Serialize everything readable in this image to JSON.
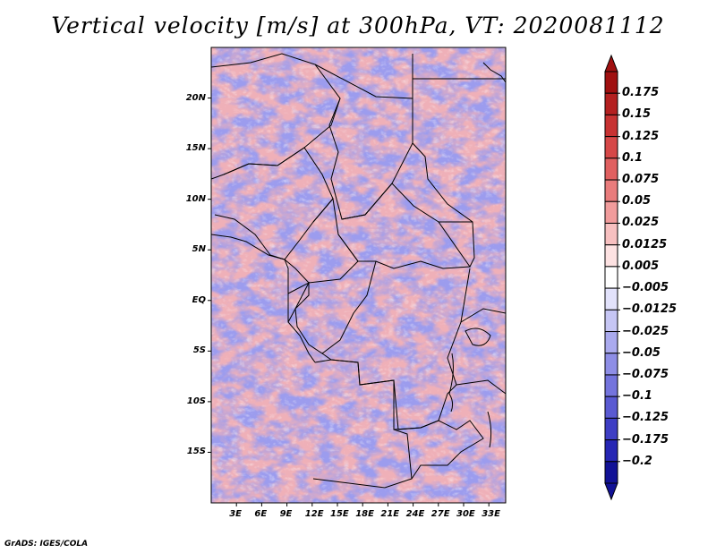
{
  "title": "Vertical velocity [m/s] at 300hPa, VT: 2020081112",
  "footer": "GrADS: IGES/COLA",
  "map": {
    "lon_range": [
      0,
      35
    ],
    "lat_range": [
      -20,
      25
    ],
    "lat_ticks": [
      {
        "lat": 20,
        "label": "20N"
      },
      {
        "lat": 15,
        "label": "15N"
      },
      {
        "lat": 10,
        "label": "10N"
      },
      {
        "lat": 5,
        "label": "5N"
      },
      {
        "lat": 0,
        "label": "EQ"
      },
      {
        "lat": -5,
        "label": "5S"
      },
      {
        "lat": -10,
        "label": "10S"
      },
      {
        "lat": -15,
        "label": "15S"
      }
    ],
    "lon_ticks": [
      {
        "lon": 3,
        "label": "3E"
      },
      {
        "lon": 6,
        "label": "6E"
      },
      {
        "lon": 9,
        "label": "9E"
      },
      {
        "lon": 12,
        "label": "12E"
      },
      {
        "lon": 15,
        "label": "15E"
      },
      {
        "lon": 18,
        "label": "18E"
      },
      {
        "lon": 21,
        "label": "21E"
      },
      {
        "lon": 24,
        "label": "24E"
      },
      {
        "lon": 27,
        "label": "27E"
      },
      {
        "lon": 30,
        "label": "30E"
      },
      {
        "lon": 33,
        "label": "33E"
      }
    ]
  },
  "colorbar": {
    "labels": [
      "0.175",
      "0.15",
      "0.125",
      "0.1",
      "0.075",
      "0.05",
      "0.025",
      "0.0125",
      "0.005",
      "−0.005",
      "−0.0125",
      "−0.025",
      "−0.05",
      "−0.075",
      "−0.1",
      "−0.125",
      "−0.175",
      "−0.2"
    ],
    "colors": [
      "#a01010",
      "#b42020",
      "#c73232",
      "#d64848",
      "#e06060",
      "#e97c7c",
      "#f19c9c",
      "#f7c0c0",
      "#fde2e2",
      "#ffffff",
      "#e2e2fb",
      "#c6c6f4",
      "#aaaaee",
      "#8e8ee6",
      "#7474dd",
      "#5a5ad2",
      "#3e3ec4",
      "#2626b4",
      "#121296"
    ],
    "over_color": "#a01010",
    "under_color": "#121296"
  },
  "colors": {
    "field_positive": "#e06060",
    "field_negative": "#8e8ee6",
    "coastline": "#000000"
  }
}
